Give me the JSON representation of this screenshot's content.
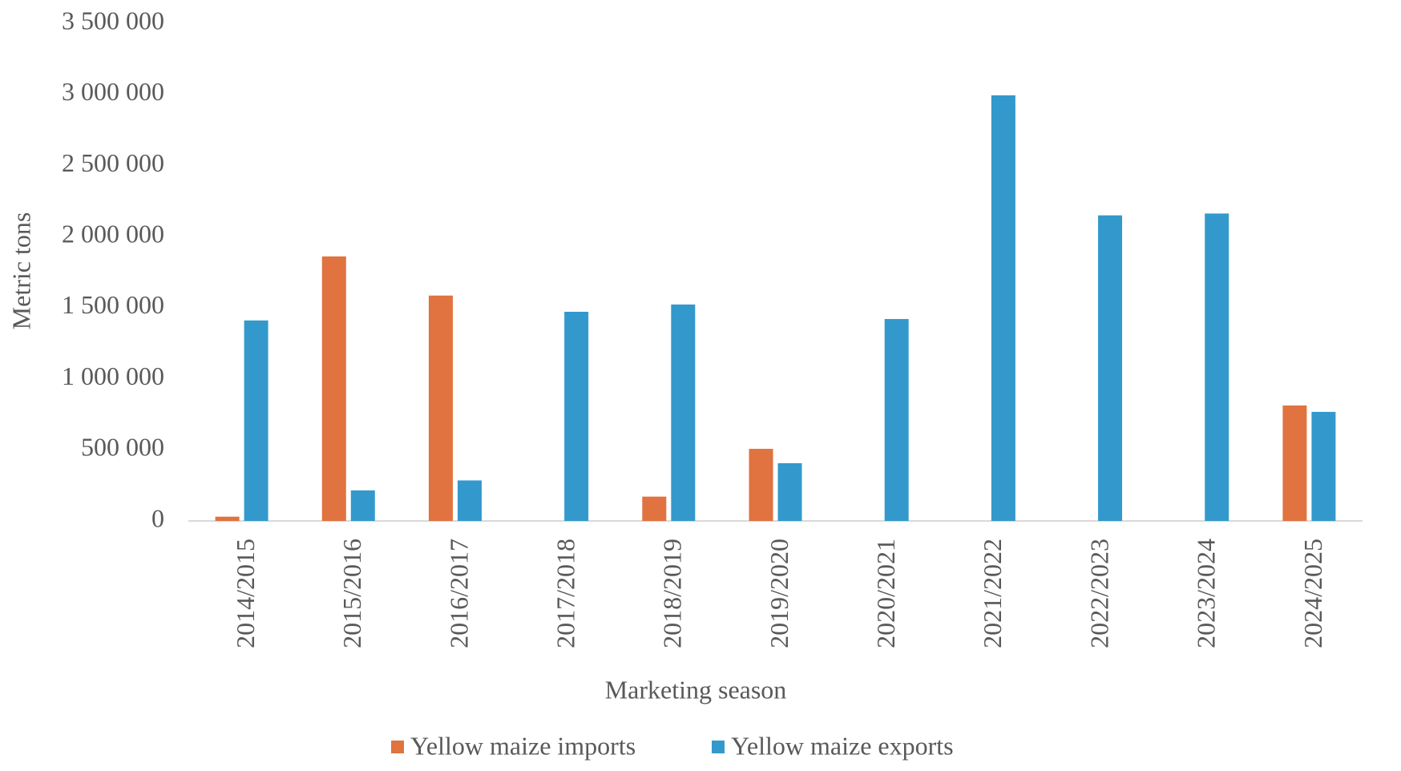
{
  "chart_data": {
    "type": "bar",
    "x_label": "Marketing season",
    "y_label": "Metric tons",
    "categories": [
      "2014/2015",
      "2015/2016",
      "2016/2017",
      "2017/2018",
      "2018/2019",
      "2019/2020",
      "2020/2021",
      "2021/2022",
      "2022/2023",
      "2023/2024",
      "2024/2025"
    ],
    "series": [
      {
        "name": "Yellow maize imports",
        "color": "#e07340",
        "values": [
          30000,
          1860000,
          1585000,
          0,
          171000,
          507000,
          0,
          0,
          0,
          0,
          812000
        ]
      },
      {
        "name": "Yellow maize exports",
        "color": "#3399cc",
        "values": [
          1410000,
          215000,
          285000,
          1471000,
          1522000,
          406000,
          1420000,
          2993000,
          2149000,
          2162000,
          767000
        ]
      }
    ],
    "ylim": [
      0,
      3500000
    ],
    "yticks": [
      0,
      {
        "value": 500000,
        "label": "500 000"
      },
      {
        "value": 1000000,
        "label": "1 000 000"
      },
      {
        "value": 1500000,
        "label": "1 500 000"
      },
      {
        "value": 2000000,
        "label": "2 000 000"
      },
      {
        "value": 2500000,
        "label": "2 500 000"
      },
      {
        "value": 3000000,
        "label": "3 000 000"
      },
      {
        "value": 3500000,
        "label": "3 500 000"
      }
    ],
    "grid": false,
    "legend": "bottom"
  }
}
